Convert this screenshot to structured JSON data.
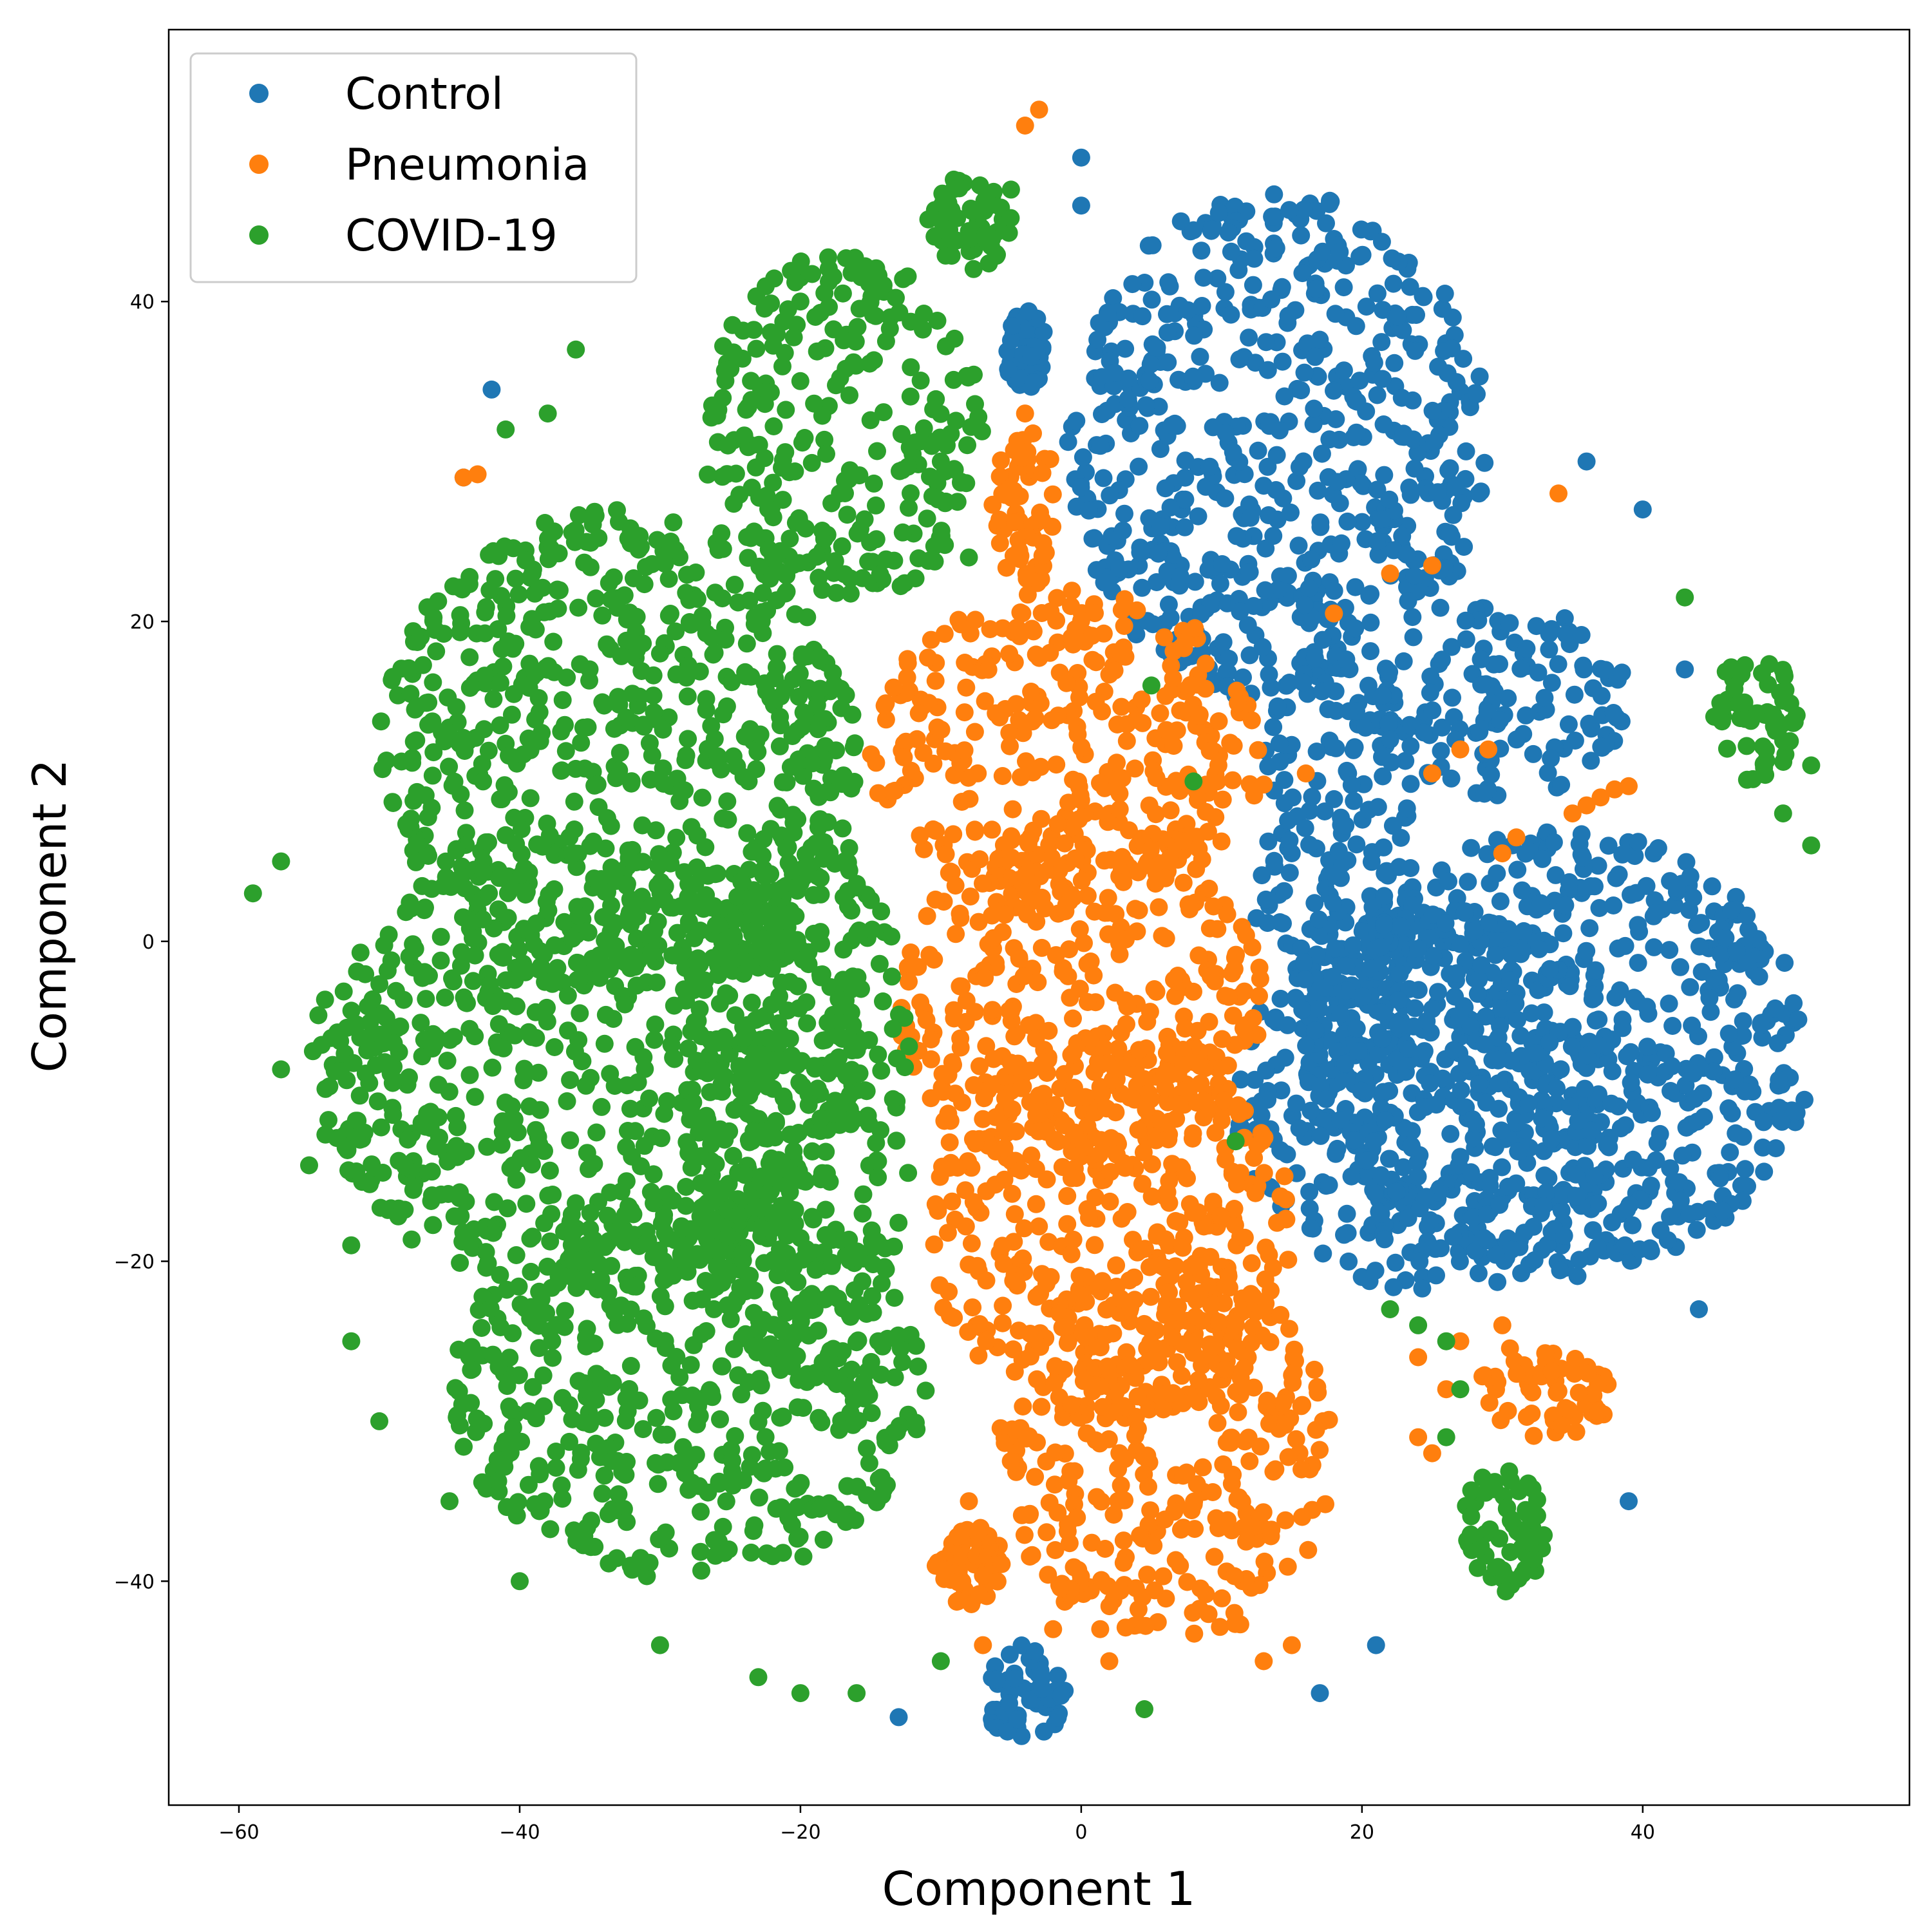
{
  "chart_data": {
    "type": "scatter",
    "title": "",
    "xlabel": "Component 1",
    "ylabel": "Component 2",
    "xlim": [
      -65,
      59
    ],
    "ylim": [
      -54,
      57
    ],
    "xticks": [
      -60,
      -40,
      -20,
      0,
      20,
      40
    ],
    "yticks": [
      -40,
      -20,
      0,
      20,
      40
    ],
    "xtick_labels": [
      "−60",
      "−40",
      "−20",
      "0",
      "20",
      "40"
    ],
    "ytick_labels": [
      "−40",
      "−20",
      "0",
      "20",
      "40"
    ],
    "grid": false,
    "legend_position": "top-left",
    "series": [
      {
        "name": "Control",
        "color": "#1f77b4",
        "clusters": [
          {
            "shape": "ellipse",
            "center": [
              14,
              31
            ],
            "radii": [
              15,
              16
            ]
          },
          {
            "shape": "ellipse",
            "center": [
              18,
              5
            ],
            "radii": [
              6,
              14
            ]
          },
          {
            "shape": "ellipse",
            "center": [
              30,
              15
            ],
            "radii": [
              9,
              6
            ]
          },
          {
            "shape": "ellipse",
            "center": [
              34,
              -7
            ],
            "radii": [
              18,
              14
            ]
          },
          {
            "shape": "ellipse",
            "center": [
              25,
              -10
            ],
            "radii": [
              14,
              12
            ]
          },
          {
            "shape": "ellipse",
            "center": [
              -4,
              -47
            ],
            "radii": [
              3,
              3
            ]
          },
          {
            "shape": "ellipse",
            "center": [
              -4,
              37
            ],
            "radii": [
              1.5,
              2.5
            ]
          }
        ],
        "points": [
          [
            -42,
            34.5
          ],
          [
            0,
            49
          ],
          [
            0,
            46
          ],
          [
            -13,
            -48.5
          ],
          [
            17,
            -47
          ],
          [
            21,
            -44
          ],
          [
            39,
            -35
          ],
          [
            44,
            -23
          ],
          [
            40,
            27
          ],
          [
            43,
            17
          ],
          [
            36,
            30
          ],
          [
            -44,
            29
          ]
        ]
      },
      {
        "name": "Pneumonia",
        "color": "#ff7f0e",
        "clusters": [
          {
            "shape": "ellipse",
            "center": [
              -1,
              12
            ],
            "radii": [
              14,
              10
            ]
          },
          {
            "shape": "ellipse",
            "center": [
              0,
              -4
            ],
            "radii": [
              13,
              11
            ]
          },
          {
            "shape": "ellipse",
            "center": [
              2,
              -18
            ],
            "radii": [
              13,
              12
            ]
          },
          {
            "shape": "ellipse",
            "center": [
              6,
              -32
            ],
            "radii": [
              12,
              12
            ]
          },
          {
            "shape": "ellipse",
            "center": [
              -4,
              27
            ],
            "radii": [
              2.5,
              5
            ]
          },
          {
            "shape": "ellipse",
            "center": [
              33,
              -28
            ],
            "radii": [
              5,
              3
            ]
          },
          {
            "shape": "ellipse",
            "center": [
              -8,
              -39
            ],
            "radii": [
              2.5,
              2.5
            ]
          }
        ],
        "points": [
          [
            -4,
            51
          ],
          [
            -3,
            52
          ],
          [
            -44,
            29
          ],
          [
            -43,
            29.2
          ],
          [
            34,
            28
          ],
          [
            22,
            23
          ],
          [
            25,
            23.5
          ],
          [
            18,
            20.5
          ],
          [
            27,
            12
          ],
          [
            29,
            12
          ],
          [
            13,
            9.8
          ],
          [
            16,
            10.5
          ],
          [
            25,
            10.5
          ],
          [
            30,
            5.5
          ],
          [
            31,
            6.5
          ],
          [
            35,
            8
          ],
          [
            36,
            8.5
          ],
          [
            37,
            9
          ],
          [
            38,
            9.5
          ],
          [
            39,
            9.7
          ],
          [
            -4,
            33
          ],
          [
            -8,
            -35
          ],
          [
            -7,
            -44
          ],
          [
            -2,
            -43
          ],
          [
            2,
            -45
          ],
          [
            26,
            -28
          ],
          [
            24,
            -26
          ],
          [
            27,
            -25
          ],
          [
            30,
            -24
          ],
          [
            24,
            -31
          ],
          [
            25,
            -32
          ],
          [
            13,
            -45
          ],
          [
            15,
            -44
          ]
        ]
      },
      {
        "name": "COVID-19",
        "color": "#2ca02c",
        "clusters": [
          {
            "shape": "ellipse",
            "center": [
              -17,
              32
            ],
            "radii": [
              10,
              11
            ]
          },
          {
            "shape": "ellipse",
            "center": [
              -33,
              12
            ],
            "radii": [
              17,
              15
            ]
          },
          {
            "shape": "ellipse",
            "center": [
              -35,
              -8
            ],
            "radii": [
              20,
              14
            ]
          },
          {
            "shape": "ellipse",
            "center": [
              -28,
              -28
            ],
            "radii": [
              17,
              12
            ]
          },
          {
            "shape": "ellipse",
            "center": [
              -20,
              -10
            ],
            "radii": [
              8,
              18
            ]
          },
          {
            "shape": "ellipse",
            "center": [
              -8,
              45
            ],
            "radii": [
              3,
              3
            ]
          },
          {
            "shape": "ellipse",
            "center": [
              48,
              14
            ],
            "radii": [
              3,
              4
            ]
          },
          {
            "shape": "ellipse",
            "center": [
              30,
              -37
            ],
            "radii": [
              3,
              4
            ]
          }
        ],
        "points": [
          [
            -59,
            3
          ],
          [
            -57,
            -8
          ],
          [
            -55,
            -14
          ],
          [
            -52,
            -19
          ],
          [
            -57,
            5
          ],
          [
            -38,
            33
          ],
          [
            -36,
            37
          ],
          [
            -41,
            32
          ],
          [
            -30,
            18
          ],
          [
            -20,
            40
          ],
          [
            -10,
            30
          ],
          [
            -8,
            24
          ],
          [
            5,
            16
          ],
          [
            8,
            10
          ],
          [
            11,
            -12.5
          ],
          [
            4.5,
            -48
          ],
          [
            52,
            6
          ],
          [
            52,
            11
          ],
          [
            50,
            8
          ],
          [
            43,
            21.5
          ],
          [
            27,
            -28
          ],
          [
            26,
            -31
          ],
          [
            22,
            -23
          ],
          [
            24,
            -24
          ],
          [
            26,
            -25
          ],
          [
            -10,
            -45
          ],
          [
            -16,
            -47
          ],
          [
            -20,
            -47
          ],
          [
            -30,
            -44
          ],
          [
            -40,
            -40
          ],
          [
            -45,
            -35
          ],
          [
            -50,
            -30
          ],
          [
            -52,
            -25
          ],
          [
            -23,
            -46
          ],
          [
            -5,
            47
          ]
        ]
      }
    ]
  }
}
